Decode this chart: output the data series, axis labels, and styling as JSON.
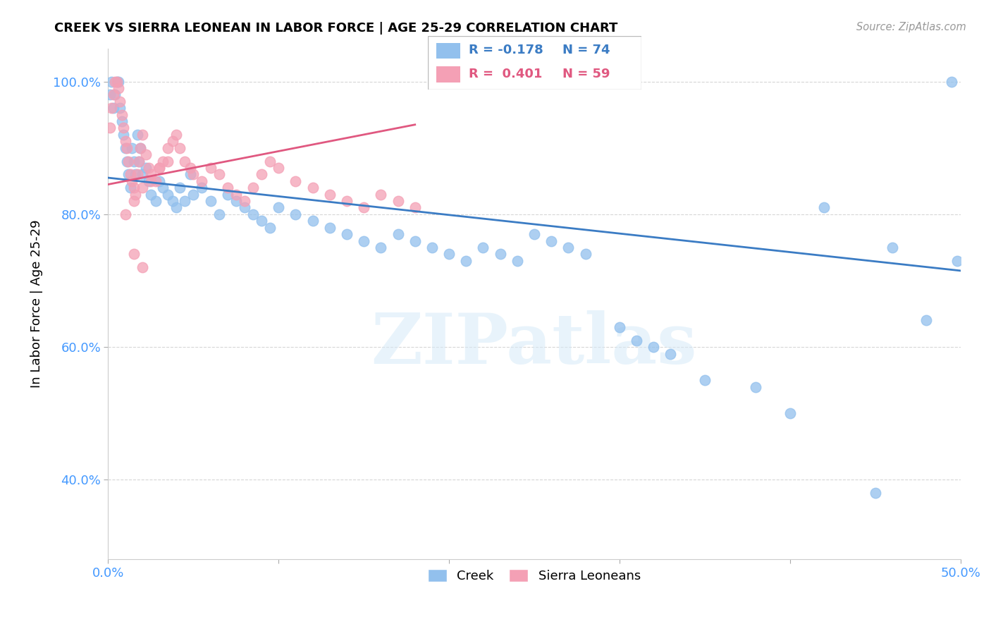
{
  "title": "CREEK VS SIERRA LEONEAN IN LABOR FORCE | AGE 25-29 CORRELATION CHART",
  "source_text": "Source: ZipAtlas.com",
  "ylabel": "In Labor Force | Age 25-29",
  "xlim": [
    0.0,
    0.5
  ],
  "ylim": [
    0.28,
    1.05
  ],
  "yticks": [
    0.4,
    0.6,
    0.8,
    1.0
  ],
  "yticklabels": [
    "40.0%",
    "60.0%",
    "80.0%",
    "100.0%"
  ],
  "creek_color": "#92C0ED",
  "sierra_color": "#F4A0B5",
  "creek_line_color": "#3B7CC4",
  "sierra_line_color": "#E05880",
  "creek_R": -0.178,
  "creek_N": 74,
  "sierra_R": 0.401,
  "sierra_N": 59,
  "watermark": "ZIPatlas",
  "legend_creek_label": "Creek",
  "legend_sierra_label": "Sierra Leoneans",
  "creek_x": [
    0.001,
    0.002,
    0.003,
    0.004,
    0.005,
    0.006,
    0.007,
    0.008,
    0.009,
    0.01,
    0.011,
    0.012,
    0.013,
    0.014,
    0.015,
    0.016,
    0.017,
    0.018,
    0.019,
    0.02,
    0.022,
    0.024,
    0.025,
    0.028,
    0.03,
    0.032,
    0.035,
    0.038,
    0.04,
    0.042,
    0.045,
    0.048,
    0.05,
    0.055,
    0.06,
    0.065,
    0.07,
    0.075,
    0.08,
    0.085,
    0.09,
    0.095,
    0.1,
    0.11,
    0.12,
    0.13,
    0.14,
    0.15,
    0.16,
    0.17,
    0.18,
    0.19,
    0.2,
    0.21,
    0.22,
    0.23,
    0.24,
    0.25,
    0.26,
    0.27,
    0.28,
    0.3,
    0.31,
    0.32,
    0.33,
    0.35,
    0.38,
    0.4,
    0.42,
    0.45,
    0.46,
    0.48,
    0.495,
    0.498
  ],
  "creek_y": [
    0.98,
    1.0,
    0.96,
    0.98,
    1.0,
    1.0,
    0.96,
    0.94,
    0.92,
    0.9,
    0.88,
    0.86,
    0.84,
    0.9,
    0.88,
    0.86,
    0.92,
    0.88,
    0.9,
    0.86,
    0.87,
    0.85,
    0.83,
    0.82,
    0.85,
    0.84,
    0.83,
    0.82,
    0.81,
    0.84,
    0.82,
    0.86,
    0.83,
    0.84,
    0.82,
    0.8,
    0.83,
    0.82,
    0.81,
    0.8,
    0.79,
    0.78,
    0.81,
    0.8,
    0.79,
    0.78,
    0.77,
    0.76,
    0.75,
    0.77,
    0.76,
    0.75,
    0.74,
    0.73,
    0.75,
    0.74,
    0.73,
    0.77,
    0.76,
    0.75,
    0.74,
    0.63,
    0.61,
    0.6,
    0.59,
    0.55,
    0.54,
    0.5,
    0.81,
    0.38,
    0.75,
    0.64,
    1.0,
    0.73
  ],
  "sierra_x": [
    0.001,
    0.002,
    0.003,
    0.004,
    0.005,
    0.006,
    0.007,
    0.008,
    0.009,
    0.01,
    0.011,
    0.012,
    0.013,
    0.014,
    0.015,
    0.016,
    0.017,
    0.018,
    0.019,
    0.02,
    0.022,
    0.024,
    0.025,
    0.028,
    0.03,
    0.032,
    0.035,
    0.038,
    0.04,
    0.042,
    0.045,
    0.048,
    0.05,
    0.055,
    0.06,
    0.065,
    0.07,
    0.075,
    0.08,
    0.085,
    0.09,
    0.095,
    0.1,
    0.11,
    0.12,
    0.13,
    0.14,
    0.15,
    0.16,
    0.17,
    0.18,
    0.01,
    0.015,
    0.02,
    0.025,
    0.03,
    0.035,
    0.015,
    0.02
  ],
  "sierra_y": [
    0.93,
    0.96,
    0.98,
    1.0,
    1.0,
    0.99,
    0.97,
    0.95,
    0.93,
    0.91,
    0.9,
    0.88,
    0.86,
    0.85,
    0.84,
    0.83,
    0.86,
    0.88,
    0.9,
    0.92,
    0.89,
    0.87,
    0.86,
    0.85,
    0.87,
    0.88,
    0.9,
    0.91,
    0.92,
    0.9,
    0.88,
    0.87,
    0.86,
    0.85,
    0.87,
    0.86,
    0.84,
    0.83,
    0.82,
    0.84,
    0.86,
    0.88,
    0.87,
    0.85,
    0.84,
    0.83,
    0.82,
    0.81,
    0.83,
    0.82,
    0.81,
    0.8,
    0.82,
    0.84,
    0.85,
    0.87,
    0.88,
    0.74,
    0.72
  ]
}
